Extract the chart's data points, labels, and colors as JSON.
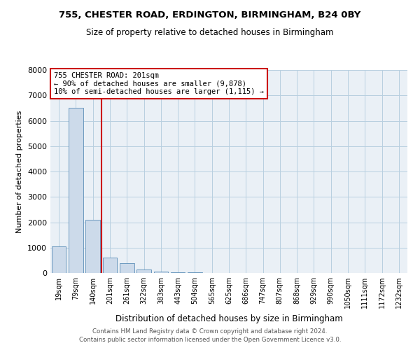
{
  "title1": "755, CHESTER ROAD, ERDINGTON, BIRMINGHAM, B24 0BY",
  "title2": "Size of property relative to detached houses in Birmingham",
  "xlabel": "Distribution of detached houses by size in Birmingham",
  "ylabel": "Number of detached properties",
  "categories": [
    "19sqm",
    "79sqm",
    "140sqm",
    "201sqm",
    "261sqm",
    "322sqm",
    "383sqm",
    "443sqm",
    "504sqm",
    "565sqm",
    "625sqm",
    "686sqm",
    "747sqm",
    "807sqm",
    "868sqm",
    "929sqm",
    "990sqm",
    "1050sqm",
    "1111sqm",
    "1172sqm",
    "1232sqm"
  ],
  "values": [
    1050,
    6500,
    2100,
    600,
    380,
    130,
    55,
    25,
    30,
    0,
    0,
    0,
    0,
    0,
    0,
    0,
    0,
    0,
    0,
    0,
    0
  ],
  "bar_color": "#ccdaea",
  "bar_edge_color": "#5b8db8",
  "vline_x_index": 3,
  "vline_color": "#cc0000",
  "annotation_text": "755 CHESTER ROAD: 201sqm\n← 90% of detached houses are smaller (9,878)\n10% of semi-detached houses are larger (1,115) →",
  "annotation_box_color": "#cc0000",
  "ylim": [
    0,
    8000
  ],
  "yticks": [
    0,
    1000,
    2000,
    3000,
    4000,
    5000,
    6000,
    7000,
    8000
  ],
  "grid_color": "#b8cfe0",
  "bg_color": "#eaf0f6",
  "footer1": "Contains HM Land Registry data © Crown copyright and database right 2024.",
  "footer2": "Contains public sector information licensed under the Open Government Licence v3.0."
}
